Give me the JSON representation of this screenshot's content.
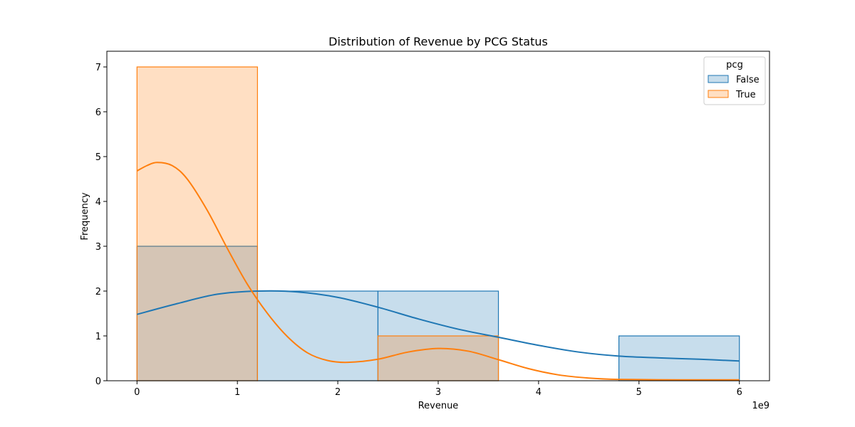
{
  "chart_data": {
    "type": "histogram",
    "title": "Distribution of Revenue by PCG Status",
    "xlabel": "Revenue",
    "ylabel": "Frequency",
    "x_offset_label": "1e9",
    "x_scale": 1000000000,
    "xlim": [
      -0.3,
      6.3
    ],
    "ylim": [
      0,
      7.35
    ],
    "xticks": [
      0,
      1,
      2,
      3,
      4,
      5,
      6
    ],
    "yticks": [
      0,
      1,
      2,
      3,
      4,
      5,
      6,
      7
    ],
    "bin_edges": [
      0,
      1.2,
      2.4,
      3.6,
      4.8,
      6.0
    ],
    "legend": {
      "title": "pcg",
      "placement": "top-right"
    },
    "series": [
      {
        "name": "False",
        "color": "#1f77b4",
        "fill": "rgba(31,119,180,0.25)",
        "counts": [
          3,
          2,
          2,
          0,
          1
        ],
        "kde": [
          [
            0,
            1.48
          ],
          [
            0.4,
            1.72
          ],
          [
            0.8,
            1.93
          ],
          [
            1.2,
            2.0
          ],
          [
            1.6,
            1.98
          ],
          [
            2.0,
            1.86
          ],
          [
            2.4,
            1.64
          ],
          [
            2.8,
            1.38
          ],
          [
            3.2,
            1.15
          ],
          [
            3.6,
            0.97
          ],
          [
            4.0,
            0.79
          ],
          [
            4.4,
            0.64
          ],
          [
            4.8,
            0.55
          ],
          [
            5.2,
            0.51
          ],
          [
            5.6,
            0.48
          ],
          [
            6.0,
            0.44
          ]
        ]
      },
      {
        "name": "True",
        "color": "#ff7f0e",
        "fill": "rgba(255,127,14,0.25)",
        "counts": [
          7,
          0,
          1,
          0,
          0
        ],
        "kde": [
          [
            0,
            4.68
          ],
          [
            0.1,
            4.8
          ],
          [
            0.2,
            4.87
          ],
          [
            0.35,
            4.8
          ],
          [
            0.5,
            4.5
          ],
          [
            0.7,
            3.8
          ],
          [
            0.9,
            2.95
          ],
          [
            1.1,
            2.15
          ],
          [
            1.3,
            1.5
          ],
          [
            1.5,
            0.98
          ],
          [
            1.7,
            0.62
          ],
          [
            1.9,
            0.45
          ],
          [
            2.1,
            0.41
          ],
          [
            2.4,
            0.48
          ],
          [
            2.7,
            0.64
          ],
          [
            3.0,
            0.72
          ],
          [
            3.3,
            0.66
          ],
          [
            3.6,
            0.47
          ],
          [
            3.9,
            0.27
          ],
          [
            4.2,
            0.13
          ],
          [
            4.5,
            0.06
          ],
          [
            4.8,
            0.03
          ],
          [
            5.4,
            0.02
          ],
          [
            6.0,
            0.02
          ]
        ]
      }
    ]
  }
}
